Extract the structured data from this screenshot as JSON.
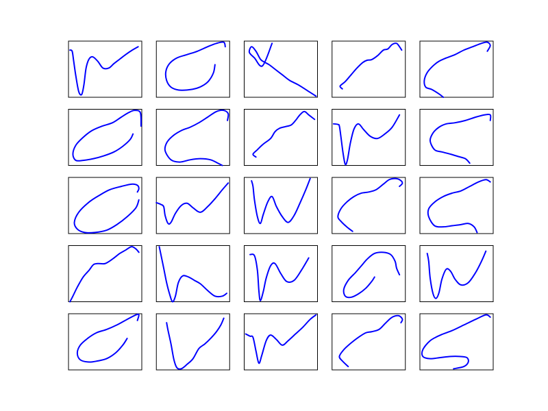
{
  "colors": {
    "line": "#0000ff",
    "frame": "#000000",
    "background": "#ffffff"
  },
  "chart_data": {
    "type": "line",
    "layout": "grid",
    "rows": 5,
    "cols": 5,
    "axes_visible": false,
    "ticks": "none",
    "grid": false,
    "xlim": [
      0,
      1
    ],
    "ylim": [
      0,
      1
    ],
    "panels": [
      {
        "x": [
          0.02,
          0.05,
          0.07,
          0.1,
          0.14,
          0.18,
          0.21,
          0.24,
          0.28,
          0.33,
          0.4,
          0.47,
          0.55,
          0.62,
          0.7,
          0.78,
          0.87,
          0.95
        ],
        "y": [
          0.84,
          0.82,
          0.65,
          0.38,
          0.1,
          0.05,
          0.22,
          0.52,
          0.68,
          0.72,
          0.64,
          0.52,
          0.52,
          0.6,
          0.68,
          0.76,
          0.84,
          0.9
        ]
      },
      {
        "x": [
          0.8,
          0.78,
          0.72,
          0.65,
          0.55,
          0.42,
          0.3,
          0.2,
          0.14,
          0.13,
          0.18,
          0.28,
          0.42,
          0.56,
          0.7,
          0.82,
          0.92,
          0.94
        ],
        "y": [
          0.58,
          0.44,
          0.3,
          0.22,
          0.16,
          0.13,
          0.13,
          0.18,
          0.3,
          0.46,
          0.6,
          0.7,
          0.76,
          0.82,
          0.9,
          0.96,
          0.98,
          0.9
        ]
      },
      {
        "x": [
          0.38,
          0.25,
          0.14,
          0.07,
          0.1,
          0.16,
          0.22,
          0.27,
          0.34,
          0.42,
          0.52,
          0.62,
          0.74,
          0.86,
          0.98
        ],
        "y": [
          0.96,
          0.56,
          0.7,
          0.8,
          0.9,
          0.82,
          0.68,
          0.63,
          0.58,
          0.5,
          0.4,
          0.3,
          0.22,
          0.12,
          0.02
        ]
      },
      {
        "x": [
          0.14,
          0.11,
          0.18,
          0.26,
          0.34,
          0.42,
          0.48,
          0.54,
          0.62,
          0.7,
          0.76,
          0.82,
          0.88,
          0.92,
          0.95
        ],
        "y": [
          0.15,
          0.2,
          0.28,
          0.4,
          0.52,
          0.62,
          0.66,
          0.67,
          0.74,
          0.84,
          0.86,
          0.94,
          0.96,
          0.9,
          0.84
        ]
      },
      {
        "x": [
          0.32,
          0.26,
          0.16,
          0.08,
          0.06,
          0.1,
          0.18,
          0.26,
          0.36,
          0.48,
          0.6,
          0.72,
          0.84,
          0.92,
          0.96,
          0.92
        ],
        "y": [
          0.0,
          0.06,
          0.14,
          0.18,
          0.3,
          0.44,
          0.56,
          0.64,
          0.7,
          0.76,
          0.84,
          0.9,
          0.96,
          0.98,
          0.92,
          0.82
        ]
      },
      {
        "x": [
          0.88,
          0.84,
          0.74,
          0.62,
          0.48,
          0.34,
          0.2,
          0.1,
          0.06,
          0.1,
          0.2,
          0.32,
          0.46,
          0.6,
          0.72,
          0.82,
          0.9,
          0.98,
          0.99
        ],
        "y": [
          0.56,
          0.46,
          0.34,
          0.24,
          0.17,
          0.12,
          0.09,
          0.09,
          0.2,
          0.36,
          0.5,
          0.62,
          0.7,
          0.76,
          0.86,
          0.94,
          0.98,
          0.94,
          0.7
        ]
      },
      {
        "x": [
          0.9,
          0.84,
          0.74,
          0.6,
          0.46,
          0.32,
          0.2,
          0.12,
          0.14,
          0.22,
          0.34,
          0.46,
          0.58,
          0.7,
          0.82,
          0.92,
          0.98,
          0.97
        ],
        "y": [
          0.0,
          0.04,
          0.1,
          0.12,
          0.1,
          0.06,
          0.1,
          0.26,
          0.4,
          0.52,
          0.62,
          0.68,
          0.76,
          0.86,
          0.96,
          0.98,
          0.92,
          0.8
        ]
      },
      {
        "x": [
          0.16,
          0.12,
          0.18,
          0.26,
          0.36,
          0.42,
          0.48,
          0.56,
          0.64,
          0.7,
          0.76,
          0.82,
          0.88,
          0.94,
          0.96
        ],
        "y": [
          0.15,
          0.2,
          0.28,
          0.38,
          0.48,
          0.6,
          0.66,
          0.69,
          0.72,
          0.8,
          0.9,
          0.96,
          0.9,
          0.84,
          0.82
        ]
      },
      {
        "x": [
          0.02,
          0.08,
          0.1,
          0.12,
          0.15,
          0.18,
          0.21,
          0.25,
          0.3,
          0.36,
          0.43,
          0.52,
          0.62,
          0.72,
          0.82,
          0.92
        ],
        "y": [
          0.74,
          0.73,
          0.7,
          0.52,
          0.22,
          0.02,
          0.1,
          0.4,
          0.65,
          0.74,
          0.64,
          0.52,
          0.48,
          0.56,
          0.68,
          0.9
        ]
      },
      {
        "x": [
          0.68,
          0.62,
          0.52,
          0.42,
          0.3,
          0.2,
          0.14,
          0.18,
          0.26,
          0.36,
          0.48,
          0.62,
          0.76,
          0.88,
          0.96,
          0.96
        ],
        "y": [
          0.04,
          0.12,
          0.16,
          0.2,
          0.24,
          0.28,
          0.44,
          0.58,
          0.68,
          0.74,
          0.76,
          0.8,
          0.86,
          0.9,
          0.9,
          0.8
        ]
      },
      {
        "x": [
          0.94,
          0.96,
          0.94,
          0.86,
          0.72,
          0.56,
          0.42,
          0.28,
          0.14,
          0.08,
          0.12,
          0.22,
          0.36,
          0.52,
          0.66,
          0.8,
          0.92,
          0.96
        ],
        "y": [
          0.74,
          0.8,
          0.86,
          0.88,
          0.84,
          0.78,
          0.68,
          0.56,
          0.38,
          0.2,
          0.08,
          0.02,
          0.02,
          0.06,
          0.16,
          0.3,
          0.46,
          0.6
        ]
      },
      {
        "x": [
          0.0,
          0.06,
          0.1,
          0.12,
          0.16,
          0.2,
          0.26,
          0.34,
          0.42,
          0.5,
          0.6,
          0.7,
          0.8,
          0.9,
          0.98
        ],
        "y": [
          0.55,
          0.52,
          0.48,
          0.32,
          0.18,
          0.2,
          0.36,
          0.5,
          0.54,
          0.46,
          0.38,
          0.48,
          0.62,
          0.78,
          0.9
        ]
      },
      {
        "x": [
          0.1,
          0.12,
          0.14,
          0.18,
          0.22,
          0.26,
          0.32,
          0.38,
          0.44,
          0.52,
          0.6,
          0.68,
          0.76,
          0.84,
          0.9
        ],
        "y": [
          0.94,
          0.84,
          0.6,
          0.3,
          0.18,
          0.34,
          0.56,
          0.66,
          0.48,
          0.3,
          0.2,
          0.32,
          0.54,
          0.78,
          0.98
        ]
      },
      {
        "x": [
          0.28,
          0.2,
          0.12,
          0.08,
          0.12,
          0.2,
          0.3,
          0.4,
          0.5,
          0.6,
          0.7,
          0.78,
          0.86,
          0.92,
          0.96,
          0.92
        ],
        "y": [
          0.04,
          0.12,
          0.22,
          0.3,
          0.44,
          0.56,
          0.66,
          0.72,
          0.74,
          0.78,
          0.88,
          0.96,
          0.98,
          0.96,
          0.9,
          0.84
        ]
      },
      {
        "x": [
          0.78,
          0.74,
          0.66,
          0.56,
          0.44,
          0.32,
          0.2,
          0.12,
          0.12,
          0.2,
          0.32,
          0.44,
          0.56,
          0.68,
          0.8,
          0.9,
          0.96
        ],
        "y": [
          0.02,
          0.12,
          0.18,
          0.16,
          0.14,
          0.12,
          0.14,
          0.3,
          0.44,
          0.56,
          0.66,
          0.72,
          0.76,
          0.84,
          0.92,
          0.96,
          0.92
        ]
      },
      {
        "x": [
          0.02,
          0.06,
          0.12,
          0.2,
          0.28,
          0.34,
          0.4,
          0.5,
          0.6,
          0.7,
          0.78,
          0.86,
          0.92,
          0.96
        ],
        "y": [
          0.0,
          0.1,
          0.26,
          0.44,
          0.56,
          0.66,
          0.68,
          0.68,
          0.76,
          0.86,
          0.92,
          0.98,
          0.94,
          0.88
        ]
      },
      {
        "x": [
          0.04,
          0.1,
          0.14,
          0.18,
          0.22,
          0.26,
          0.3,
          0.36,
          0.44,
          0.52,
          0.6,
          0.7,
          0.8,
          0.9,
          0.96
        ],
        "y": [
          0.98,
          0.6,
          0.34,
          0.14,
          0.0,
          0.1,
          0.34,
          0.46,
          0.44,
          0.38,
          0.32,
          0.2,
          0.1,
          0.1,
          0.15
        ]
      },
      {
        "x": [
          0.08,
          0.14,
          0.18,
          0.2,
          0.22,
          0.26,
          0.3,
          0.36,
          0.42,
          0.5,
          0.58,
          0.68,
          0.78,
          0.88
        ],
        "y": [
          0.84,
          0.82,
          0.56,
          0.2,
          0.02,
          0.18,
          0.42,
          0.64,
          0.68,
          0.5,
          0.36,
          0.38,
          0.56,
          0.78
        ]
      },
      {
        "x": [
          0.58,
          0.54,
          0.46,
          0.36,
          0.26,
          0.18,
          0.16,
          0.22,
          0.32,
          0.4,
          0.48,
          0.58,
          0.7,
          0.8,
          0.86,
          0.88,
          0.92
        ],
        "y": [
          0.44,
          0.36,
          0.24,
          0.14,
          0.08,
          0.1,
          0.22,
          0.38,
          0.52,
          0.64,
          0.76,
          0.86,
          0.88,
          0.84,
          0.72,
          0.6,
          0.48
        ]
      },
      {
        "x": [
          0.1,
          0.12,
          0.14,
          0.18,
          0.22,
          0.26,
          0.3,
          0.36,
          0.42,
          0.48,
          0.56,
          0.66,
          0.76,
          0.84,
          0.9
        ],
        "y": [
          0.86,
          0.72,
          0.42,
          0.14,
          0.06,
          0.16,
          0.4,
          0.58,
          0.54,
          0.4,
          0.3,
          0.34,
          0.52,
          0.72,
          0.9
        ]
      },
      {
        "x": [
          0.8,
          0.74,
          0.64,
          0.52,
          0.4,
          0.28,
          0.16,
          0.12,
          0.16,
          0.26,
          0.38,
          0.52,
          0.66,
          0.8,
          0.92,
          0.96,
          0.94
        ],
        "y": [
          0.56,
          0.44,
          0.3,
          0.2,
          0.16,
          0.14,
          0.18,
          0.3,
          0.44,
          0.56,
          0.66,
          0.72,
          0.8,
          0.9,
          0.98,
          0.98,
          0.88
        ]
      },
      {
        "x": [
          0.14,
          0.16,
          0.2,
          0.24,
          0.28,
          0.34,
          0.42,
          0.5,
          0.58,
          0.66,
          0.74,
          0.82,
          0.88,
          0.92
        ],
        "y": [
          0.84,
          0.7,
          0.46,
          0.18,
          0.04,
          0.02,
          0.1,
          0.2,
          0.38,
          0.46,
          0.56,
          0.68,
          0.8,
          0.92
        ]
      },
      {
        "x": [
          0.02,
          0.08,
          0.12,
          0.16,
          0.2,
          0.24,
          0.3,
          0.36,
          0.44,
          0.52,
          0.6,
          0.7,
          0.8,
          0.9,
          0.98
        ],
        "y": [
          0.64,
          0.6,
          0.58,
          0.34,
          0.12,
          0.26,
          0.52,
          0.62,
          0.54,
          0.44,
          0.52,
          0.64,
          0.76,
          0.9,
          0.98
        ]
      },
      {
        "x": [
          0.22,
          0.14,
          0.1,
          0.16,
          0.26,
          0.36,
          0.46,
          0.54,
          0.64,
          0.72,
          0.8,
          0.86,
          0.92,
          0.96,
          0.94
        ],
        "y": [
          0.06,
          0.16,
          0.24,
          0.36,
          0.48,
          0.58,
          0.66,
          0.68,
          0.72,
          0.82,
          0.92,
          0.96,
          0.96,
          0.9,
          0.84
        ]
      },
      {
        "x": [
          0.46,
          0.6,
          0.66,
          0.64,
          0.54,
          0.42,
          0.28,
          0.14,
          0.04,
          0.04,
          0.14,
          0.28,
          0.44,
          0.6,
          0.76,
          0.9,
          0.96
        ],
        "y": [
          0.02,
          0.06,
          0.14,
          0.22,
          0.24,
          0.24,
          0.22,
          0.2,
          0.24,
          0.36,
          0.52,
          0.62,
          0.7,
          0.8,
          0.9,
          0.98,
          0.94
        ]
      }
    ]
  }
}
